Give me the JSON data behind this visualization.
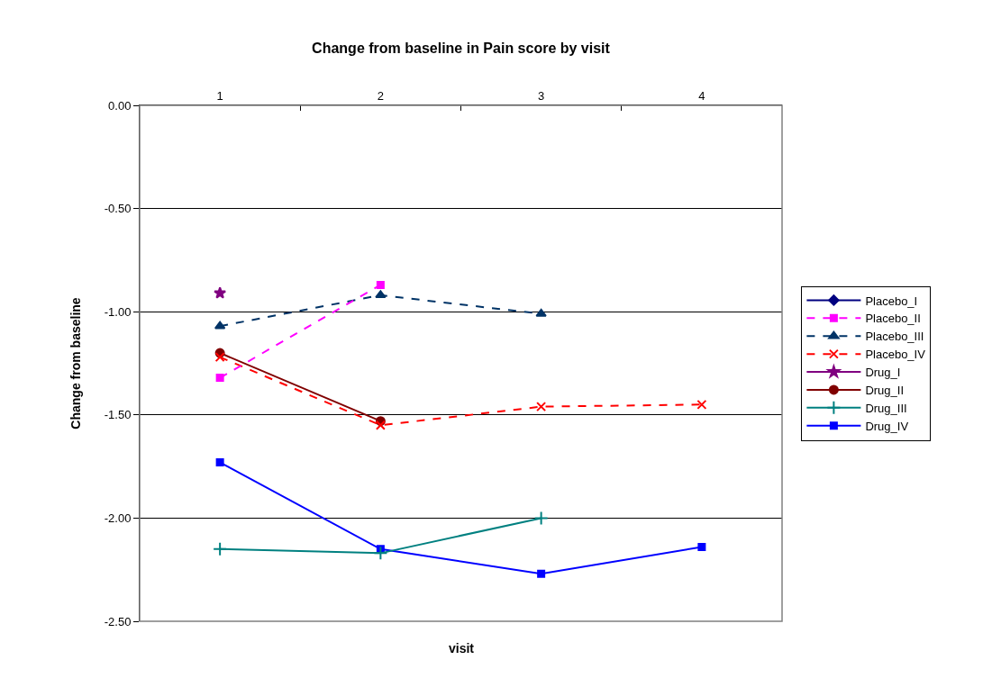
{
  "chart_data": {
    "type": "line",
    "title": "Change from baseline in Pain score by visit",
    "xlabel": "visit",
    "ylabel": "Change from baseline",
    "categories": [
      "1",
      "2",
      "3",
      "4"
    ],
    "ylim": [
      -2.5,
      0
    ],
    "yticks": [
      {
        "value": 0,
        "label": "0.00"
      },
      {
        "value": -0.5,
        "label": "-0.50"
      },
      {
        "value": -1,
        "label": "-1.00"
      },
      {
        "value": -1.5,
        "label": "-1.50"
      },
      {
        "value": -2,
        "label": "-2.00"
      },
      {
        "value": -2.5,
        "label": "-2.50"
      }
    ],
    "grid": "y",
    "legend": "right",
    "series": [
      {
        "name": "Placebo_I",
        "color": "#000080",
        "marker": "diamond",
        "line_style": "solid",
        "values": [
          null,
          null,
          null,
          null
        ]
      },
      {
        "name": "Placebo_II",
        "color": "#ff00ff",
        "marker": "square",
        "line_style": "dashed",
        "values": [
          -1.32,
          -0.87,
          null,
          null
        ]
      },
      {
        "name": "Placebo_III",
        "color": "#003366",
        "marker": "triangle",
        "line_style": "dashed",
        "values": [
          -1.07,
          -0.92,
          -1.01,
          null
        ]
      },
      {
        "name": "Placebo_IV",
        "color": "#ff0000",
        "marker": "x",
        "line_style": "dashed",
        "values": [
          -1.22,
          -1.55,
          -1.46,
          -1.45
        ]
      },
      {
        "name": "Drug_I",
        "color": "#800080",
        "marker": "star",
        "line_style": "solid",
        "values": [
          -0.91,
          null,
          null,
          null
        ]
      },
      {
        "name": "Drug_II",
        "color": "#800000",
        "marker": "circle",
        "line_style": "solid",
        "values": [
          -1.2,
          -1.53,
          null,
          null
        ]
      },
      {
        "name": "Drug_III",
        "color": "#008080",
        "marker": "cross",
        "line_style": "solid",
        "values": [
          -2.15,
          -2.17,
          -2.0,
          null
        ]
      },
      {
        "name": "Drug_IV",
        "color": "#0000ff",
        "marker": "square",
        "line_style": "solid",
        "values": [
          -1.73,
          -2.15,
          -2.27,
          -2.14
        ]
      }
    ]
  }
}
